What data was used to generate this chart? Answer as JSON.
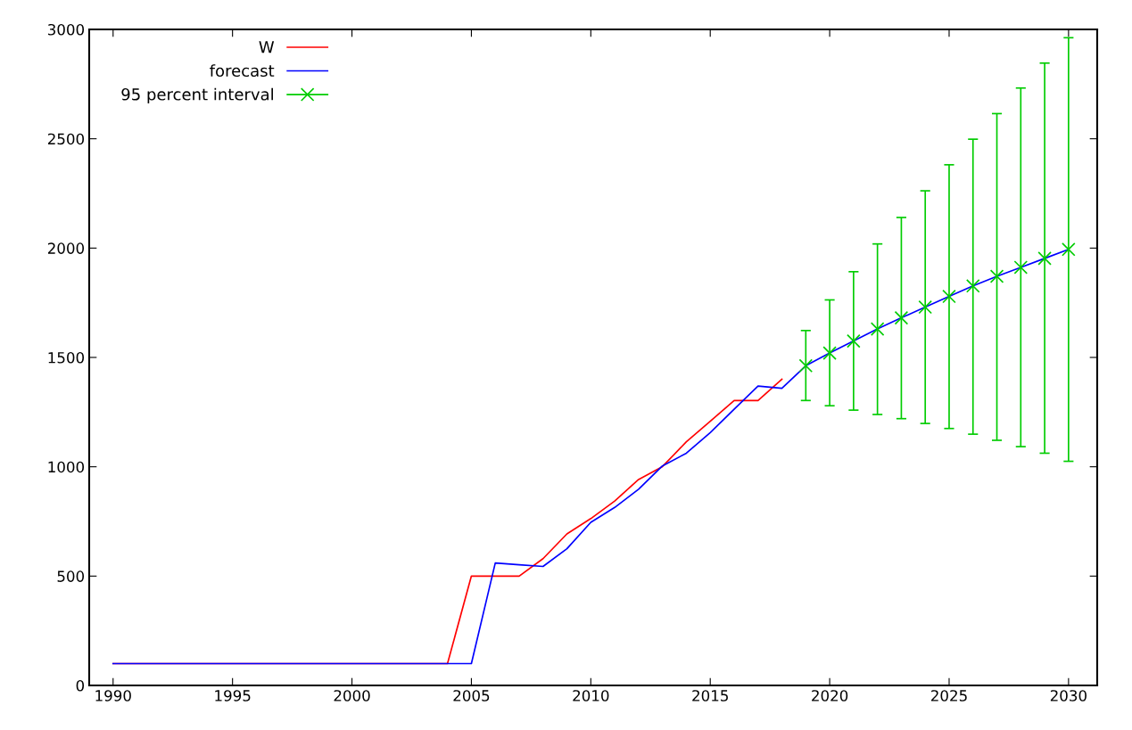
{
  "chart_data": {
    "type": "line",
    "xlim": [
      1989,
      2031.2
    ],
    "ylim": [
      0,
      3000
    ],
    "xticks": [
      1990,
      1995,
      2000,
      2005,
      2010,
      2015,
      2020,
      2025,
      2030
    ],
    "yticks": [
      0,
      500,
      1000,
      1500,
      2000,
      2500,
      3000
    ],
    "grid": false,
    "legend": "top left",
    "series": [
      {
        "name": "W",
        "color": "#ff0000",
        "x": [
          1990,
          2004,
          2005,
          2006,
          2007,
          2008,
          2009,
          2010,
          2011,
          2012,
          2013,
          2014,
          2015,
          2016,
          2017,
          2018
        ],
        "values": [
          100,
          100,
          500,
          500,
          500,
          580,
          693,
          763,
          843,
          942,
          1001,
          1114,
          1208,
          1303,
          1303,
          1400
        ]
      },
      {
        "name": "forecast",
        "color": "#0000ff",
        "x": [
          1990,
          2005,
          2006,
          2007,
          2008,
          2009,
          2010,
          2011,
          2012,
          2013,
          2014,
          2015,
          2016,
          2017,
          2018,
          2019,
          2020,
          2021,
          2022,
          2023,
          2024,
          2025,
          2026,
          2027,
          2028,
          2029,
          2030
        ],
        "values": [
          100,
          100,
          560,
          552,
          544,
          625,
          746,
          814,
          897,
          1004,
          1062,
          1156,
          1263,
          1369,
          1359,
          1462,
          1520,
          1575,
          1630,
          1681,
          1730,
          1779,
          1827,
          1871,
          1912,
          1953,
          1994
        ]
      },
      {
        "name": "95 percent interval",
        "color": "#00cc00",
        "type": "scatter",
        "marker": "cross",
        "x": [
          2019,
          2020,
          2021,
          2022,
          2023,
          2024,
          2025,
          2026,
          2027,
          2028,
          2029,
          2030
        ],
        "values": [
          1462,
          1520,
          1575,
          1630,
          1681,
          1730,
          1779,
          1827,
          1871,
          1912,
          1953,
          1994
        ],
        "errors": [
          [
            1303,
            1623
          ],
          [
            1279,
            1763
          ],
          [
            1259,
            1892
          ],
          [
            1239,
            2019
          ],
          [
            1220,
            2140
          ],
          [
            1198,
            2262
          ],
          [
            1175,
            2381
          ],
          [
            1149,
            2498
          ],
          [
            1121,
            2615
          ],
          [
            1092,
            2732
          ],
          [
            1062,
            2846
          ],
          [
            1025,
            2962
          ]
        ]
      }
    ]
  }
}
